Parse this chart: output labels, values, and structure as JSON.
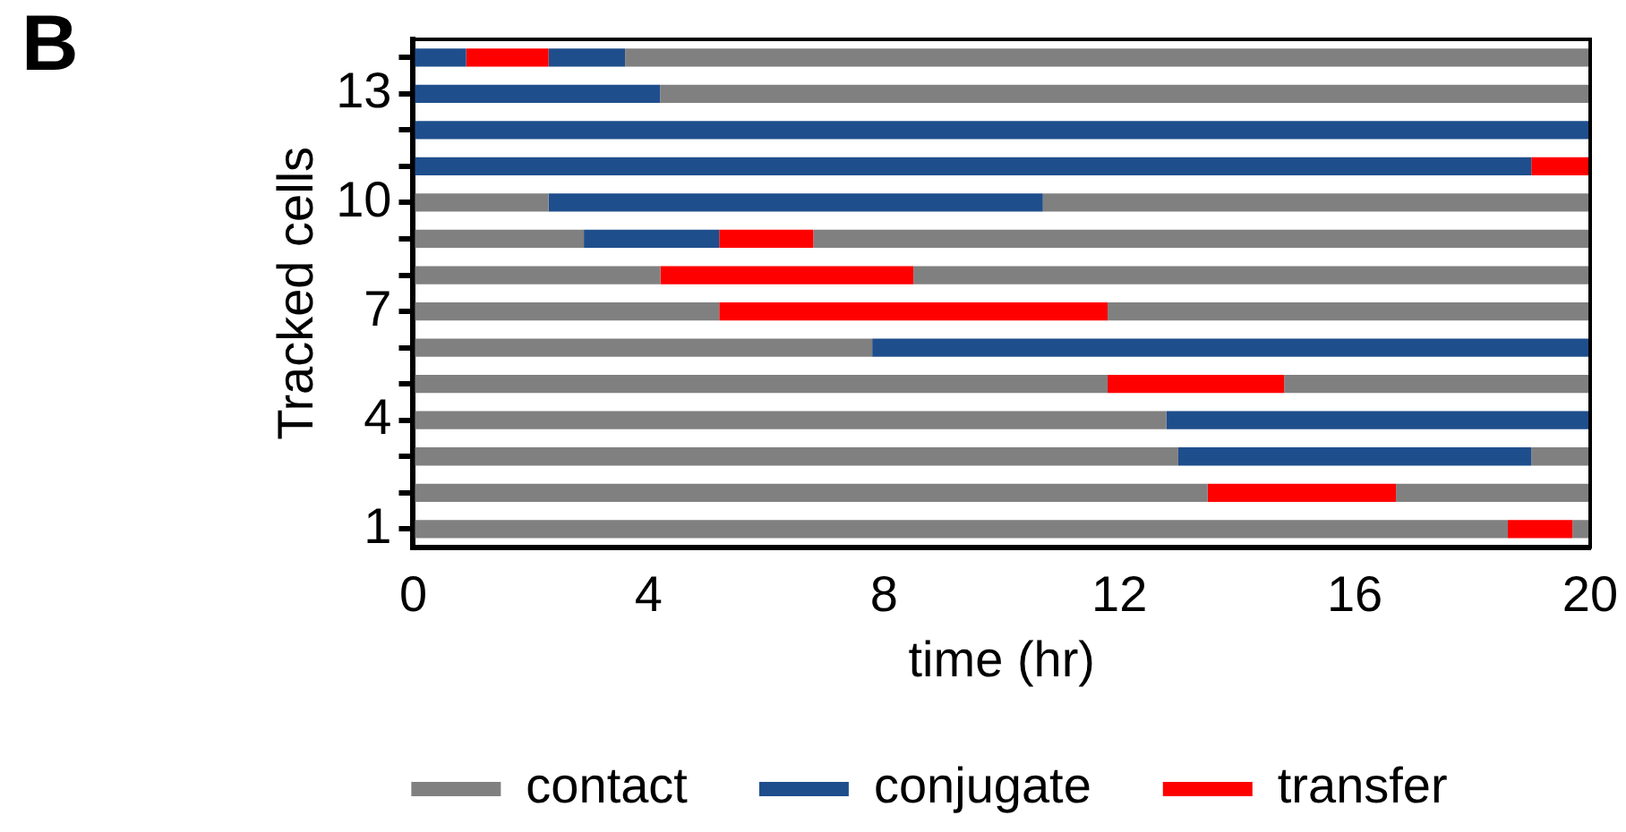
{
  "chart_data": {
    "type": "bar",
    "orientation": "horizontal",
    "title": "B",
    "xlabel": "time (hr)",
    "ylabel": "Tracked cells",
    "categories": [
      null,
      "13",
      null,
      null,
      "10",
      null,
      null,
      "7",
      null,
      null,
      "4",
      null,
      null,
      "1"
    ],
    "series": [
      {
        "name": "contact",
        "color": "#808080",
        "base": [
          3.6,
          4.2,
          null,
          null,
          0,
          0,
          0,
          0,
          0,
          0,
          0,
          0,
          0,
          0
        ],
        "values": [
          16.4,
          15.8,
          null,
          null,
          2.3,
          2.9,
          4.2,
          5.2,
          7.8,
          11.8,
          12.8,
          13.0,
          13.5,
          18.6
        ]
      },
      {
        "name": "conjugate",
        "color": "#1f4e8c",
        "base": [
          0,
          0,
          0,
          0,
          2.3,
          2.9,
          null,
          null,
          7.8,
          null,
          12.8,
          13.0,
          null,
          null
        ],
        "values": [
          0.9,
          4.2,
          20,
          19.0,
          8.4,
          2.3,
          null,
          null,
          12.2,
          null,
          7.2,
          6.0,
          null,
          null
        ]
      },
      {
        "name": "transfer",
        "color": "#ff0000",
        "base": [
          0.9,
          null,
          null,
          19.0,
          null,
          5.2,
          4.2,
          5.2,
          null,
          11.8,
          null,
          null,
          13.5,
          18.6
        ],
        "values": [
          1.4,
          null,
          null,
          1.0,
          null,
          1.6,
          4.3,
          6.6,
          null,
          3.0,
          null,
          null,
          3.2,
          1.1
        ]
      },
      {
        "color": "#808080",
        "base": [
          null,
          null,
          null,
          null,
          10.7,
          6.8,
          8.5,
          11.8,
          null,
          14.8,
          null,
          19.0,
          16.7,
          19.7
        ],
        "values": [
          null,
          null,
          null,
          null,
          9.3,
          13.2,
          11.5,
          8.2,
          null,
          5.2,
          null,
          1.0,
          3.3,
          0.3
        ]
      },
      {
        "color": "#1f4e8c",
        "base": [
          2.3,
          null,
          null,
          null,
          null,
          null,
          null,
          null,
          null,
          null,
          null,
          null,
          null,
          null
        ],
        "values": [
          1.3,
          null,
          null,
          null,
          null,
          null,
          null,
          null,
          null,
          null,
          null,
          null,
          null,
          null
        ]
      }
    ],
    "xlim": [
      0,
      20
    ],
    "xticks": [
      0,
      4,
      8,
      12,
      16,
      20
    ],
    "grid": false,
    "legend": "bottom"
  }
}
